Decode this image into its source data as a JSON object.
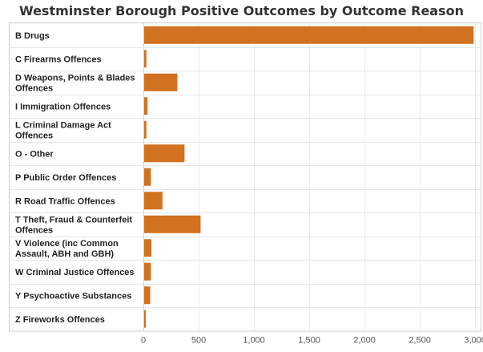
{
  "chart_data": {
    "type": "bar",
    "orientation": "horizontal",
    "title": "Westminster Borough Positive Outcomes by Outcome Reason",
    "xlabel": "",
    "ylabel": "",
    "xlim": [
      0,
      3050
    ],
    "xticks": [
      0,
      500,
      1000,
      1500,
      2000,
      2500,
      3000
    ],
    "xtick_labels": [
      "0",
      "500",
      "1,000",
      "1,500",
      "2,000",
      "2,500",
      "3,000"
    ],
    "grid": true,
    "legend": "none",
    "bar_color": "#d2711f",
    "categories": [
      [
        "B Drugs"
      ],
      [
        "C Firearms Offences"
      ],
      [
        "D Weapons, Points & Blades",
        "Offences"
      ],
      [
        "I Immigration Offences"
      ],
      [
        "L Criminal Damage Act",
        "Offences"
      ],
      [
        "O - Other"
      ],
      [
        "P Public Order Offences"
      ],
      [
        "R Road Traffic Offences"
      ],
      [
        "T Theft, Fraud & Counterfeit",
        "Offences"
      ],
      [
        "V Violence (inc Common",
        "Assault, ABH and GBH)"
      ],
      [
        "W Criminal Justice Offences"
      ],
      [
        "Y Psychoactive Substances"
      ],
      [
        "Z Fireworks Offences"
      ]
    ],
    "values": [
      2980,
      20,
      300,
      30,
      20,
      365,
      60,
      165,
      510,
      65,
      60,
      55,
      15
    ]
  }
}
